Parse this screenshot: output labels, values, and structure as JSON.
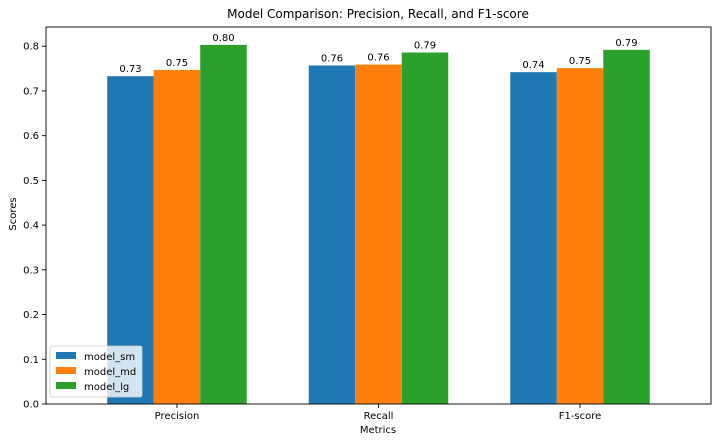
{
  "chart_data": {
    "type": "bar",
    "title": "Model Comparison: Precision, Recall, and F1-score",
    "xlabel": "Metrics",
    "ylabel": "Scores",
    "categories": [
      "Precision",
      "Recall",
      "F1-score"
    ],
    "series": [
      {
        "name": "model_sm",
        "color": "#1f77b4",
        "values": [
          0.733,
          0.757,
          0.742
        ],
        "labels": [
          "0.73",
          "0.76",
          "0.74"
        ]
      },
      {
        "name": "model_md",
        "color": "#ff7f0e",
        "values": [
          0.747,
          0.759,
          0.751
        ],
        "labels": [
          "0.75",
          "0.76",
          "0.75"
        ]
      },
      {
        "name": "model_lg",
        "color": "#2ca02c",
        "values": [
          0.803,
          0.786,
          0.792
        ],
        "labels": [
          "0.80",
          "0.79",
          "0.79"
        ]
      }
    ],
    "yticks": [
      "0.0",
      "0.1",
      "0.2",
      "0.3",
      "0.4",
      "0.5",
      "0.6",
      "0.7",
      "0.8"
    ],
    "ylim": [
      0,
      0.843
    ],
    "grid": false,
    "legend_position": "lower-left"
  }
}
